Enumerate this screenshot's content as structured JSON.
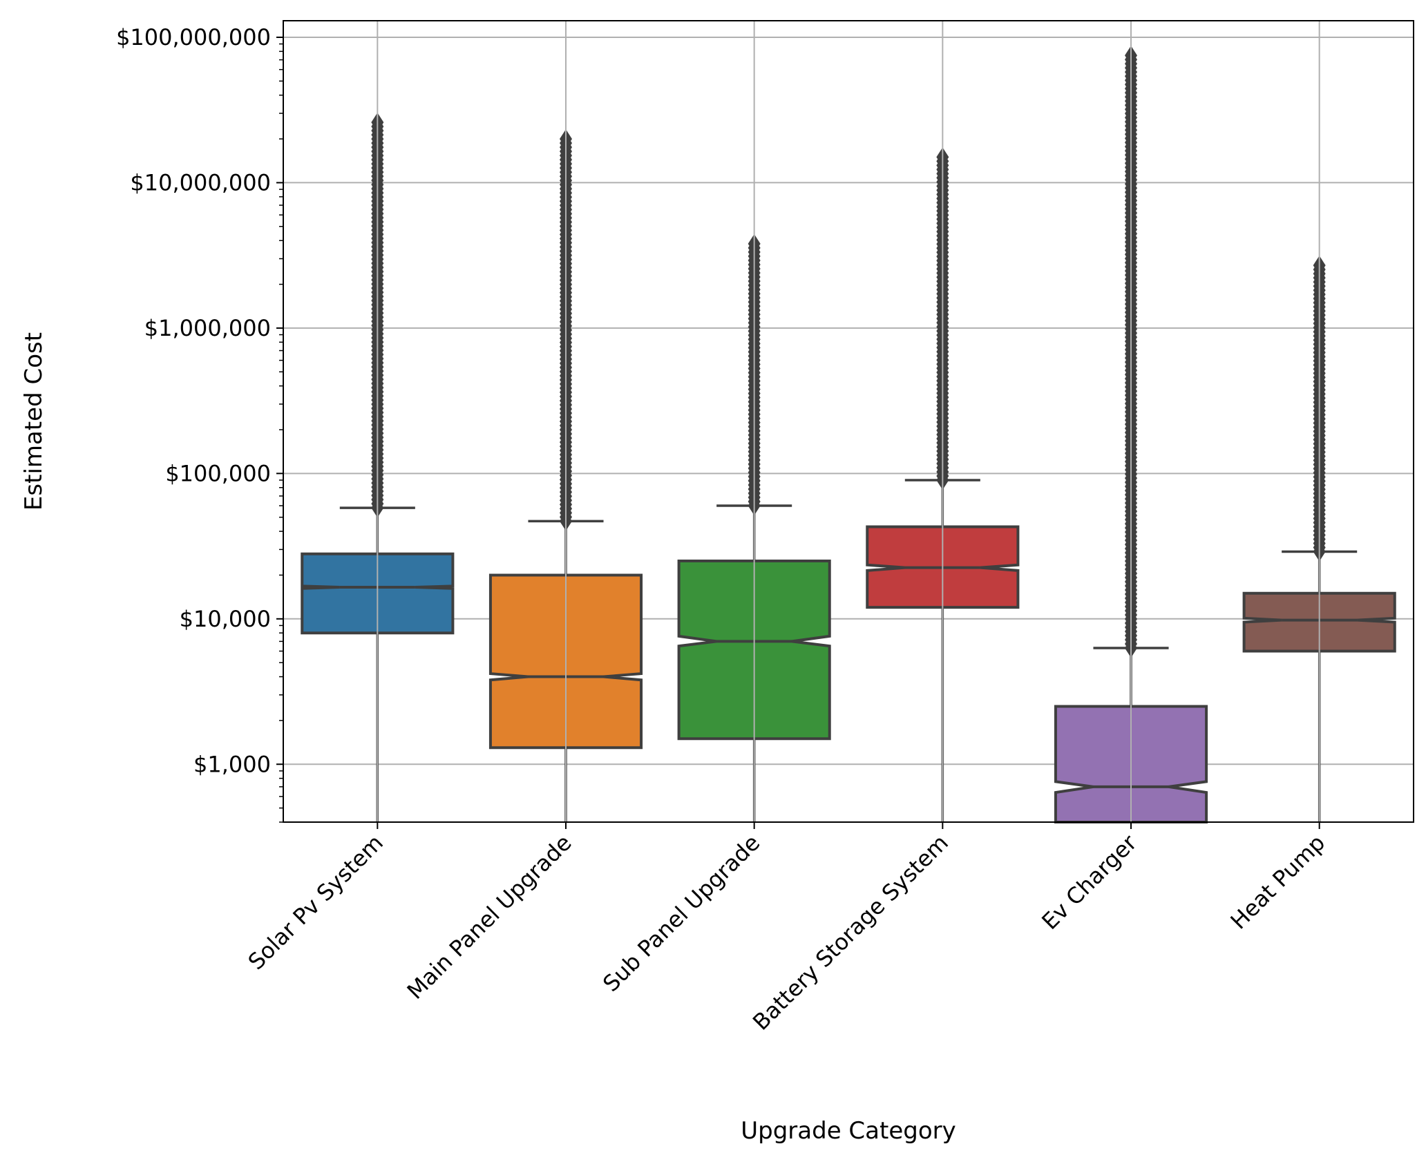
{
  "chart_data": {
    "type": "box",
    "xlabel": "Upgrade Category",
    "ylabel": "Estimated Cost",
    "yscale": "log",
    "ylim": [
      400,
      130000000
    ],
    "yticks": [
      {
        "value": 1000,
        "label": "$1,000"
      },
      {
        "value": 10000,
        "label": "$10,000"
      },
      {
        "value": 100000,
        "label": "$100,000"
      },
      {
        "value": 1000000,
        "label": "$1,000,000"
      },
      {
        "value": 10000000,
        "label": "$10,000,000"
      },
      {
        "value": 100000000,
        "label": "$100,000,000"
      }
    ],
    "grid": true,
    "notched": true,
    "categories": [
      "Solar Pv System",
      "Main Panel Upgrade",
      "Sub Panel Upgrade",
      "Battery Storage System",
      "Ev Charger",
      "Heat Pump"
    ],
    "boxes": [
      {
        "category": "Solar Pv System",
        "color": "#3274a1",
        "q1": 8000,
        "median": 16500,
        "q3": 28000,
        "notch_low": 16200,
        "notch_high": 16800,
        "whisker_low": 400,
        "whisker_high": 58000,
        "outliers_min": 58000,
        "outliers_max": 26000000
      },
      {
        "category": "Main Panel Upgrade",
        "color": "#e1812c",
        "q1": 1300,
        "median": 4000,
        "q3": 20000,
        "notch_low": 3800,
        "notch_high": 4200,
        "whisker_low": 400,
        "whisker_high": 47000,
        "outliers_min": 47000,
        "outliers_max": 20000000
      },
      {
        "category": "Sub Panel Upgrade",
        "color": "#3a923a",
        "q1": 1500,
        "median": 7000,
        "q3": 25000,
        "notch_low": 6500,
        "notch_high": 7600,
        "whisker_low": 400,
        "whisker_high": 60000,
        "outliers_min": 60000,
        "outliers_max": 3800000
      },
      {
        "category": "Battery Storage System",
        "color": "#c03d3e",
        "q1": 12000,
        "median": 22500,
        "q3": 43000,
        "notch_low": 21500,
        "notch_high": 23500,
        "whisker_low": 400,
        "whisker_high": 90000,
        "outliers_min": 90000,
        "outliers_max": 15000000
      },
      {
        "category": "Ev Charger",
        "color": "#9372b2",
        "q1": 400,
        "median": 700,
        "q3": 2500,
        "notch_low": 640,
        "notch_high": 760,
        "whisker_low": 400,
        "whisker_high": 6300,
        "outliers_min": 6300,
        "outliers_max": 75000000
      },
      {
        "category": "Heat Pump",
        "color": "#845b53",
        "q1": 6000,
        "median": 9800,
        "q3": 15000,
        "notch_low": 9500,
        "notch_high": 10100,
        "whisker_low": 400,
        "whisker_high": 29000,
        "outliers_min": 29000,
        "outliers_max": 2700000
      }
    ]
  }
}
